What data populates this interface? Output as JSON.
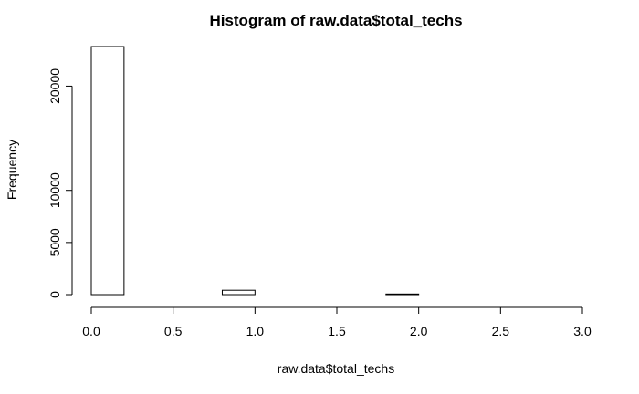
{
  "chart_data": {
    "type": "bar",
    "title": "Histogram of raw.data$total_techs",
    "xlabel": "raw.data$total_techs",
    "ylabel": "Frequency",
    "bins": [
      {
        "start": 0.0,
        "end": 0.2,
        "count": 23800
      },
      {
        "start": 0.2,
        "end": 0.4,
        "count": 0
      },
      {
        "start": 0.4,
        "end": 0.6,
        "count": 0
      },
      {
        "start": 0.6,
        "end": 0.8,
        "count": 0
      },
      {
        "start": 0.8,
        "end": 1.0,
        "count": 420
      },
      {
        "start": 1.0,
        "end": 1.2,
        "count": 0
      },
      {
        "start": 1.2,
        "end": 1.4,
        "count": 0
      },
      {
        "start": 1.4,
        "end": 1.6,
        "count": 0
      },
      {
        "start": 1.6,
        "end": 1.8,
        "count": 0
      },
      {
        "start": 1.8,
        "end": 2.0,
        "count": 60
      },
      {
        "start": 2.0,
        "end": 2.2,
        "count": 0
      },
      {
        "start": 2.2,
        "end": 2.4,
        "count": 0
      },
      {
        "start": 2.4,
        "end": 2.6,
        "count": 0
      },
      {
        "start": 2.6,
        "end": 2.8,
        "count": 0
      },
      {
        "start": 2.8,
        "end": 3.0,
        "count": 0
      }
    ],
    "xlim": [
      0,
      3
    ],
    "ylim": [
      0,
      23800
    ],
    "x_ticks": [
      "0.0",
      "0.5",
      "1.0",
      "1.5",
      "2.0",
      "2.5",
      "3.0"
    ],
    "y_ticks": [
      "0",
      "5000",
      "10000",
      "20000"
    ],
    "grid": false,
    "legend": "none",
    "colors": {
      "bar_fill": "#ffffff",
      "bar_stroke": "#000000"
    }
  }
}
